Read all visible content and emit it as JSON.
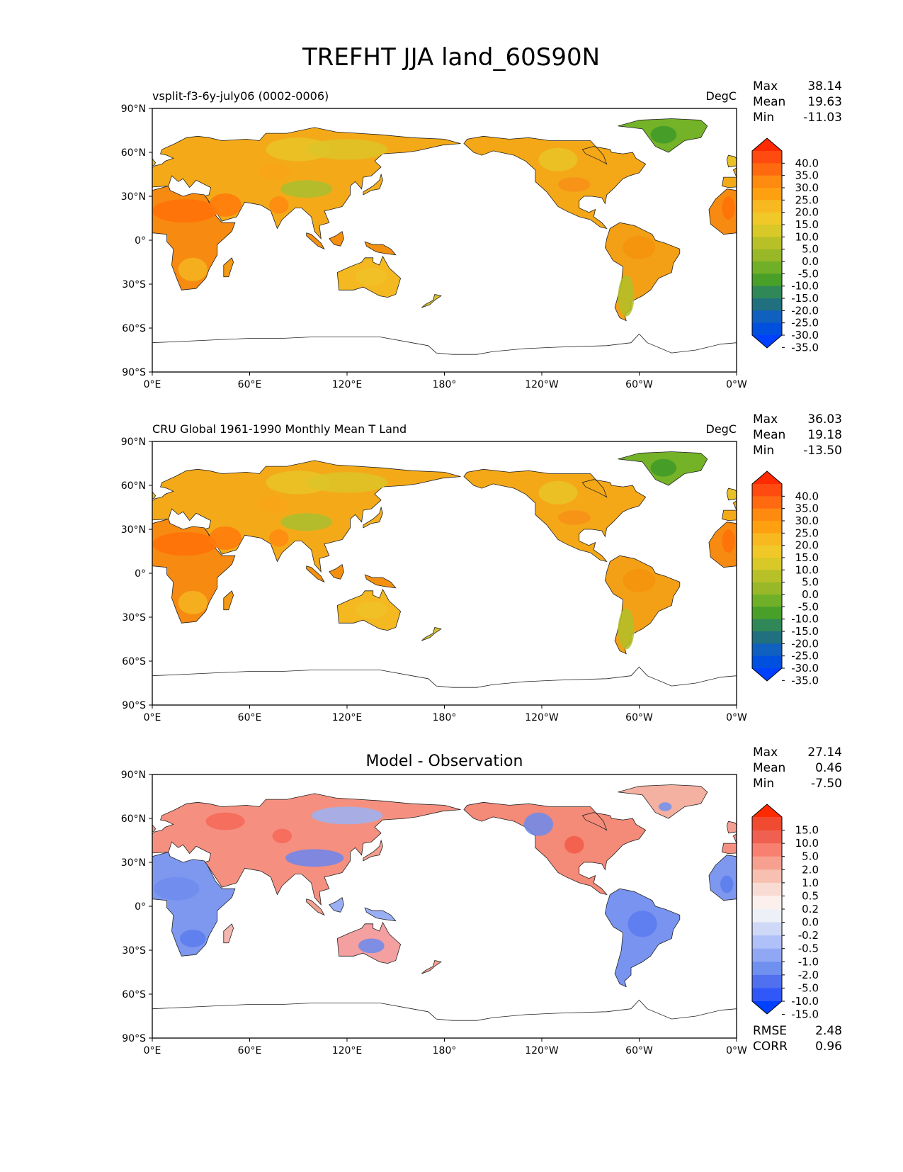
{
  "figure": {
    "title": "TREFHT JJA land_60S90N"
  },
  "chart_data": [
    {
      "type": "heatmap",
      "title": "vsplit-f3-6y-july06 (0002-0006)",
      "units": "DegC",
      "stats": [
        {
          "label": "Max",
          "value": "38.14"
        },
        {
          "label": "Mean",
          "value": "19.63"
        },
        {
          "label": "Min",
          "value": "-11.03"
        }
      ],
      "x_ticks": [
        "0°E",
        "60°E",
        "120°E",
        "180°",
        "120°W",
        "60°W",
        "0°W"
      ],
      "y_ticks": [
        "90°N",
        "60°N",
        "30°N",
        "0°",
        "30°S",
        "60°S",
        "90°S"
      ],
      "xlim": [
        0,
        360
      ],
      "ylim": [
        -90,
        90
      ],
      "colorbar": {
        "levels": [
          "40.0",
          "35.0",
          "30.0",
          "25.0",
          "20.0",
          "15.0",
          "10.0",
          "5.0",
          "0.0",
          "-5.0",
          "-10.0",
          "-15.0",
          "-20.0",
          "-25.0",
          "-30.0",
          "-35.0"
        ],
        "colors": [
          "#ff2a00",
          "#ff4a10",
          "#ff6a10",
          "#ff8a10",
          "#ffa010",
          "#f8b820",
          "#f0c828",
          "#d8c828",
          "#b8c028",
          "#98b828",
          "#70b028",
          "#48a028",
          "#308858",
          "#207080",
          "#1060c0",
          "#0050e0",
          "#0040ff"
        ],
        "extend": "both"
      },
      "stats_extra": []
    },
    {
      "type": "heatmap",
      "title": "CRU Global 1961-1990 Monthly Mean T Land",
      "units": "DegC",
      "stats": [
        {
          "label": "Max",
          "value": "36.03"
        },
        {
          "label": "Mean",
          "value": "19.18"
        },
        {
          "label": "Min",
          "value": "-13.50"
        }
      ],
      "x_ticks": [
        "0°E",
        "60°E",
        "120°E",
        "180°",
        "120°W",
        "60°W",
        "0°W"
      ],
      "y_ticks": [
        "90°N",
        "60°N",
        "30°N",
        "0°",
        "30°S",
        "60°S",
        "90°S"
      ],
      "xlim": [
        0,
        360
      ],
      "ylim": [
        -90,
        90
      ],
      "colorbar": {
        "levels": [
          "40.0",
          "35.0",
          "30.0",
          "25.0",
          "20.0",
          "15.0",
          "10.0",
          "5.0",
          "0.0",
          "-5.0",
          "-10.0",
          "-15.0",
          "-20.0",
          "-25.0",
          "-30.0",
          "-35.0"
        ],
        "colors": [
          "#ff2a00",
          "#ff4a10",
          "#ff6a10",
          "#ff8a10",
          "#ffa010",
          "#f8b820",
          "#f0c828",
          "#d8c828",
          "#b8c028",
          "#98b828",
          "#70b028",
          "#48a028",
          "#308858",
          "#207080",
          "#1060c0",
          "#0050e0",
          "#0040ff"
        ],
        "extend": "both"
      },
      "stats_extra": []
    },
    {
      "type": "heatmap",
      "title": "Model - Observation",
      "units": "",
      "stats": [
        {
          "label": "Max",
          "value": "27.14"
        },
        {
          "label": "Mean",
          "value": "0.46"
        },
        {
          "label": "Min",
          "value": "-7.50"
        }
      ],
      "x_ticks": [
        "0°E",
        "60°E",
        "120°E",
        "180°",
        "120°W",
        "60°W",
        "0°W"
      ],
      "y_ticks": [
        "90°N",
        "60°N",
        "30°N",
        "0°",
        "30°S",
        "60°S",
        "90°S"
      ],
      "xlim": [
        0,
        360
      ],
      "ylim": [
        -90,
        90
      ],
      "colorbar": {
        "levels": [
          "15.0",
          "10.0",
          "5.0",
          "2.0",
          "1.0",
          "0.5",
          "0.2",
          "0.0",
          "-0.2",
          "-0.5",
          "-1.0",
          "-2.0",
          "-5.0",
          "-10.0",
          "-15.0"
        ],
        "colors": [
          "#ff2a00",
          "#f04a30",
          "#f06050",
          "#f88070",
          "#f8a090",
          "#f8c0b0",
          "#f8dcd4",
          "#fcf0ec",
          "#eef0f8",
          "#d0d8f8",
          "#b0c0f8",
          "#90a8f4",
          "#7090f0",
          "#5070f0",
          "#3058f8",
          "#0040ff"
        ],
        "extend": "both"
      },
      "stats_extra": [
        {
          "label": "RMSE",
          "value": "2.48"
        },
        {
          "label": "CORR",
          "value": "0.96"
        }
      ]
    }
  ]
}
